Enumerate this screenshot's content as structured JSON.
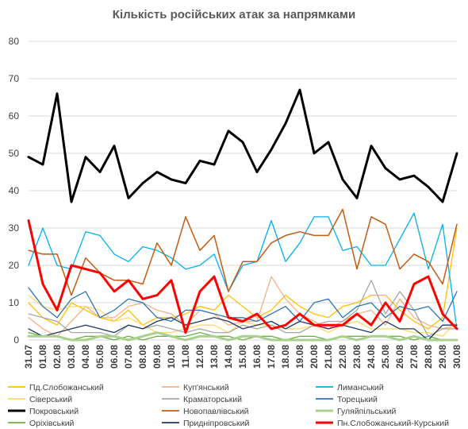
{
  "chart_data": {
    "type": "line",
    "title": "Кількість російських атак за напрямками",
    "xlabel": "",
    "ylabel": "",
    "ylim": [
      0,
      80
    ],
    "yticks": [
      0,
      10,
      20,
      30,
      40,
      50,
      60,
      70,
      80
    ],
    "grid": true,
    "legend_position": "bottom",
    "categories": [
      "31.07",
      "01.08",
      "02.08",
      "03.08",
      "04.08",
      "05.08",
      "06.08",
      "07.08",
      "08.08",
      "09.08",
      "10.08",
      "11.08",
      "12.08",
      "13.08",
      "14.08",
      "15.08",
      "16.08",
      "17.08",
      "18.08",
      "19.08",
      "20.08",
      "21.08",
      "22.08",
      "23.08",
      "24.08",
      "25.08",
      "26.08",
      "27.08",
      "28.08",
      "29.08",
      "30.08"
    ],
    "series": [
      {
        "name": "Пд.Слобожанський",
        "color": "#FFC000",
        "width": 1.3,
        "values": [
          10,
          6,
          4,
          10,
          8,
          6,
          5,
          8,
          4,
          6,
          6,
          7,
          9,
          8,
          12,
          9,
          6,
          8,
          12,
          9,
          7,
          6,
          9,
          10,
          12,
          12,
          8,
          5,
          3,
          6,
          30
        ]
      },
      {
        "name": "Куп'янський",
        "color": "#F4B183",
        "width": 1.3,
        "values": [
          6,
          3,
          1,
          5,
          9,
          6,
          6,
          9,
          10,
          8,
          7,
          4,
          8,
          7,
          4,
          5,
          5,
          17,
          11,
          7,
          5,
          3,
          5,
          7,
          8,
          4,
          11,
          6,
          4,
          3,
          4
        ]
      },
      {
        "name": "Лиманський",
        "color": "#00B0F0",
        "width": 1.3,
        "values": [
          20,
          30,
          20,
          19,
          29,
          28,
          23,
          21,
          25,
          24,
          22,
          19,
          20,
          23,
          13,
          20,
          21,
          32,
          21,
          26,
          33,
          33,
          24,
          25,
          20,
          20,
          27,
          34,
          19,
          31,
          3
        ]
      },
      {
        "name": "Сіверський",
        "color": "#FFD966",
        "width": 1.3,
        "values": [
          12,
          9,
          8,
          9,
          9,
          8,
          5,
          6,
          4,
          2,
          2,
          3,
          4,
          4,
          2,
          5,
          4,
          4,
          3,
          3,
          4,
          2,
          4,
          5,
          3,
          3,
          3,
          2,
          2,
          1,
          5
        ]
      },
      {
        "name": "Краматорський",
        "color": "#A6A6A6",
        "width": 1.3,
        "values": [
          7,
          6,
          5,
          2,
          2,
          2,
          1,
          4,
          3,
          4,
          3,
          2,
          3,
          2,
          2,
          4,
          3,
          4,
          2,
          2,
          4,
          5,
          5,
          8,
          16,
          7,
          13,
          8,
          1,
          3,
          3
        ]
      },
      {
        "name": "Торецький",
        "color": "#2E75B6",
        "width": 1.3,
        "values": [
          14,
          9,
          6,
          11,
          13,
          6,
          8,
          11,
          10,
          6,
          5,
          8,
          8,
          7,
          6,
          6,
          5,
          7,
          9,
          5,
          10,
          11,
          6,
          9,
          10,
          6,
          9,
          8,
          9,
          5,
          13
        ]
      },
      {
        "name": "Покровський",
        "color": "#000000",
        "width": 3,
        "values": [
          49,
          47,
          66,
          37,
          49,
          45,
          52,
          38,
          42,
          45,
          43,
          42,
          48,
          47,
          56,
          53,
          45,
          51,
          58,
          67,
          50,
          53,
          43,
          38,
          52,
          46,
          43,
          44,
          41,
          37,
          50
        ]
      },
      {
        "name": "Новопавлівський",
        "color": "#C55A11",
        "width": 1.5,
        "values": [
          24,
          23,
          23,
          12,
          22,
          18,
          16,
          16,
          15,
          26,
          20,
          33,
          24,
          28,
          13,
          21,
          21,
          26,
          28,
          29,
          28,
          28,
          35,
          19,
          33,
          31,
          19,
          23,
          21,
          15,
          31
        ]
      },
      {
        "name": "Гуляйпільський",
        "color": "#A9D18E",
        "width": 3,
        "values": [
          1,
          1,
          1,
          0,
          0,
          1,
          1,
          0,
          1,
          2,
          1,
          0,
          1,
          1,
          0,
          1,
          1,
          0,
          0,
          0,
          0,
          0,
          1,
          0,
          1,
          1,
          0,
          1,
          0,
          0,
          0
        ]
      },
      {
        "name": "Оріхівський",
        "color": "#70AD47",
        "width": 1.3,
        "values": [
          2,
          1,
          1,
          0,
          1,
          1,
          0,
          1,
          0,
          1,
          1,
          1,
          2,
          1,
          1,
          0,
          1,
          1,
          0,
          1,
          1,
          0,
          1,
          1,
          1,
          1,
          1,
          0,
          1,
          0,
          0
        ]
      },
      {
        "name": "Придніпровський",
        "color": "#1F3864",
        "width": 1.3,
        "values": [
          3,
          1,
          2,
          3,
          4,
          3,
          2,
          4,
          3,
          5,
          6,
          4,
          5,
          6,
          5,
          3,
          4,
          5,
          3,
          5,
          4,
          3,
          4,
          3,
          2,
          5,
          3,
          3,
          0,
          4,
          4
        ]
      },
      {
        "name": "Пн.Слобожанський-Курський",
        "color": "#FF0000",
        "width": 3,
        "values": [
          32,
          15,
          8,
          20,
          19,
          18,
          13,
          16,
          11,
          12,
          16,
          2,
          13,
          17,
          6,
          5,
          7,
          3,
          4,
          7,
          4,
          4,
          4,
          7,
          4,
          10,
          5,
          15,
          17,
          7,
          3
        ]
      }
    ]
  }
}
